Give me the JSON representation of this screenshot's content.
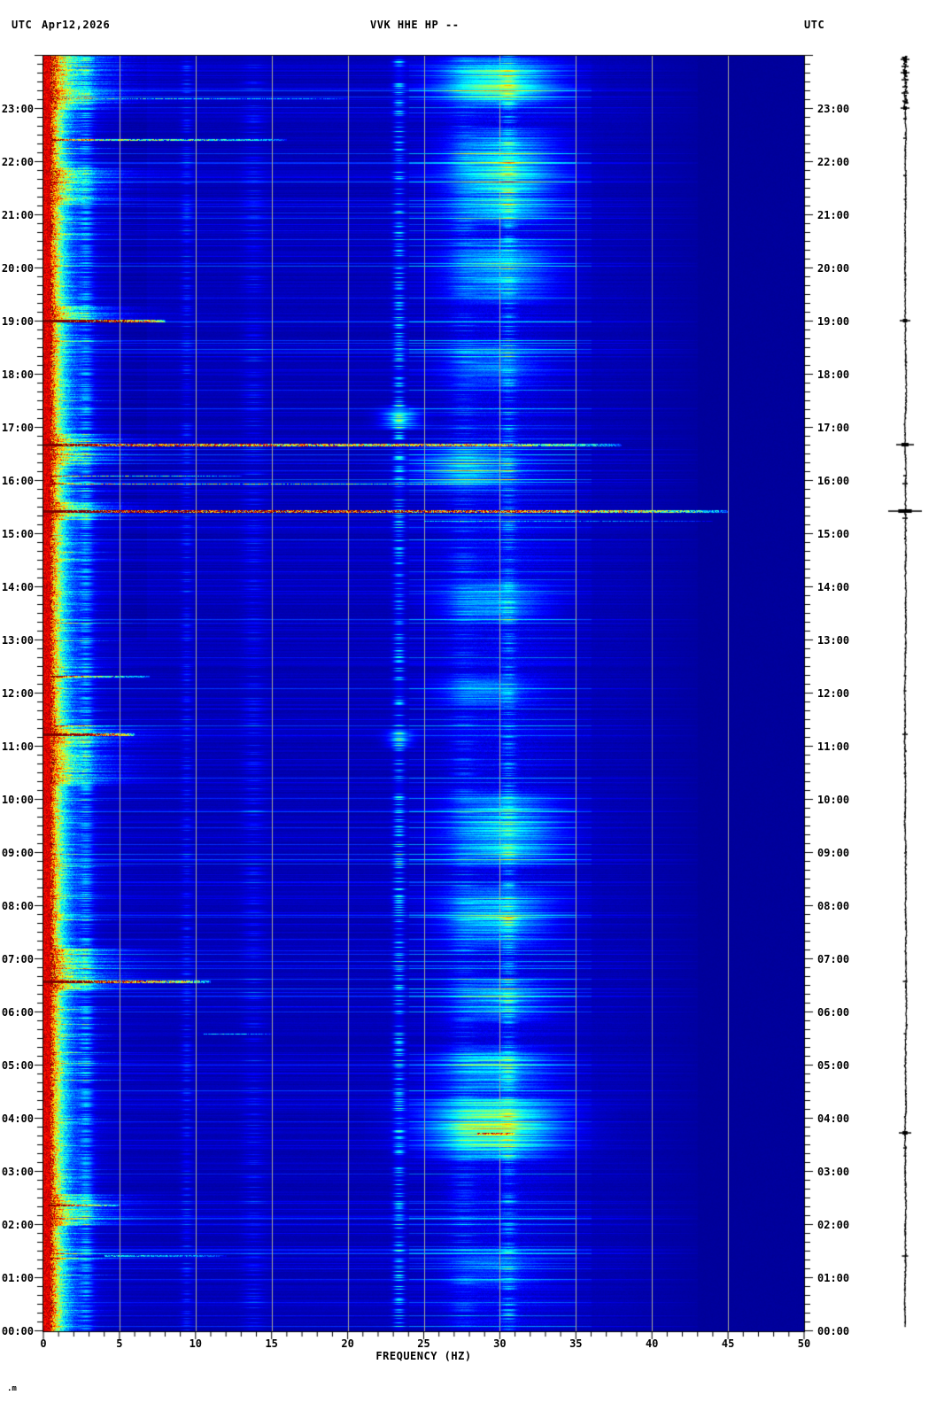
{
  "header": {
    "utc_left": "UTC",
    "date": "Apr12,2026",
    "station": "VVK HHE HP --",
    "utc_right": "UTC"
  },
  "footer_artifact": ".m",
  "axes": {
    "x": {
      "label": "FREQUENCY (HZ)",
      "min": 0,
      "max": 50,
      "major_tick_step": 5,
      "minor_tick_step": 1,
      "tick_labels": [
        "0",
        "5",
        "10",
        "15",
        "20",
        "25",
        "30",
        "35",
        "40",
        "45",
        "50"
      ]
    },
    "y": {
      "unit": "UTC",
      "bottom": "00:00",
      "top": "24:00",
      "minor_tick_minutes": 10,
      "hour_labels": [
        "00:00",
        "01:00",
        "02:00",
        "03:00",
        "04:00",
        "05:00",
        "06:00",
        "07:00",
        "08:00",
        "09:00",
        "10:00",
        "11:00",
        "12:00",
        "13:00",
        "14:00",
        "15:00",
        "16:00",
        "17:00",
        "18:00",
        "19:00",
        "20:00",
        "21:00",
        "22:00",
        "23:00"
      ]
    }
  },
  "colors": {
    "page_background": "#ffffff",
    "plot_navy": "#0000a0",
    "gridline": "#a8a89a",
    "text": "#000000",
    "trace": "#000000",
    "left_column_core": "#d00000"
  },
  "chart_data": {
    "type": "heatmap",
    "subtype": "seismic-spectrogram",
    "title": "VVK HHE HP --",
    "date": "Apr12,2026",
    "xlabel": "FREQUENCY (HZ)",
    "xlim": [
      0,
      50
    ],
    "time_axis": {
      "bottom": "00:00",
      "top": "24:00",
      "direction": "up",
      "zone": "UTC"
    },
    "grid": {
      "vertical_every_hz": 5,
      "on": true
    },
    "colormap": "jet",
    "background_level": 0.028,
    "left_column": {
      "red_fmax": 0.42,
      "decay_width": 0.8,
      "burst_regions": [
        [
          23.0,
          24.0
        ],
        [
          21.2,
          21.9
        ],
        [
          19.0,
          19.3
        ],
        [
          16.3,
          16.9
        ],
        [
          15.3,
          15.6
        ],
        [
          10.3,
          11.4
        ],
        [
          6.4,
          7.2
        ],
        [
          2.0,
          2.6
        ]
      ]
    },
    "broad_band": {
      "fc": 29.9,
      "sig": 2.7,
      "amp": 0.045
    },
    "flat_band": {
      "fmin": 43,
      "level": 0.023
    },
    "fade_band": {
      "fmin": 38,
      "fmax": 43
    },
    "dark_bands": [
      {
        "fmin": 5.2,
        "fmax": 6.8,
        "t0": 13,
        "t1": 24,
        "delta": 0.012
      }
    ],
    "stripes": [
      {
        "f": 2.8,
        "sig": 0.3,
        "amp": 0.06,
        "p": 0.5
      },
      {
        "f": 9.4,
        "sig": 0.25,
        "amp": 0.035,
        "p": 0.3
      },
      {
        "f": 13.8,
        "sig": 0.5,
        "amp": 0.03,
        "p": 0.25
      },
      {
        "f": 23.35,
        "sig": 0.25,
        "amp": 0.1,
        "p": 0.3
      },
      {
        "f": 27.6,
        "sig": 0.6,
        "amp": 0.035,
        "p": 0.3
      },
      {
        "f": 30.55,
        "sig": 0.35,
        "amp": 0.06,
        "p": 0.35
      }
    ],
    "clouds": [
      {
        "t0": 23.0,
        "t1": 24.0,
        "fc": 29.8,
        "sig": 2.4,
        "amp": 0.3
      },
      {
        "t0": 20.8,
        "t1": 22.7,
        "fc": 30.2,
        "sig": 2.2,
        "amp": 0.26
      },
      {
        "t0": 19.3,
        "t1": 20.6,
        "fc": 30.0,
        "sig": 2.2,
        "amp": 0.2
      },
      {
        "t0": 17.7,
        "t1": 18.7,
        "fc": 29.5,
        "sig": 2.0,
        "amp": 0.12
      },
      {
        "t0": 16.95,
        "t1": 17.45,
        "fc": 23.4,
        "sig": 0.8,
        "amp": 0.26
      },
      {
        "t0": 15.8,
        "t1": 16.7,
        "fc": 27.8,
        "sig": 2.2,
        "amp": 0.22
      },
      {
        "t0": 13.3,
        "t1": 14.2,
        "fc": 29.5,
        "sig": 2.2,
        "amp": 0.16
      },
      {
        "t0": 11.7,
        "t1": 12.4,
        "fc": 29.0,
        "sig": 2.0,
        "amp": 0.12
      },
      {
        "t0": 10.95,
        "t1": 11.35,
        "fc": 23.4,
        "sig": 0.6,
        "amp": 0.16
      },
      {
        "t0": 8.7,
        "t1": 10.2,
        "fc": 30.3,
        "sig": 2.3,
        "amp": 0.22
      },
      {
        "t0": 7.2,
        "t1": 8.4,
        "fc": 29.8,
        "sig": 2.3,
        "amp": 0.22
      },
      {
        "t0": 5.8,
        "t1": 6.7,
        "fc": 30.0,
        "sig": 2.0,
        "amp": 0.16
      },
      {
        "t0": 4.5,
        "t1": 5.4,
        "fc": 29.5,
        "sig": 2.3,
        "amp": 0.22
      },
      {
        "t0": 3.2,
        "t1": 4.5,
        "fc": 29.5,
        "sig": 2.8,
        "amp": 0.38
      },
      {
        "t0": 0.8,
        "t1": 1.6,
        "fc": 29.5,
        "sig": 2.0,
        "amp": 0.1
      }
    ],
    "events": [
      {
        "t": 23.2,
        "fmin": 0.5,
        "fmax": 20,
        "amp": 0.4
      },
      {
        "t": 22.42,
        "fmin": 0.5,
        "fmax": 16,
        "amp": 0.5
      },
      {
        "t": 19.02,
        "fmin": 0.2,
        "fmax": 8,
        "amp": 0.95,
        "blob": true
      },
      {
        "t": 16.69,
        "fmin": 0.4,
        "fmax": 38,
        "amp": 0.8,
        "blob": true
      },
      {
        "t": 16.1,
        "fmin": 0.5,
        "fmax": 13,
        "amp": 0.5
      },
      {
        "t": 15.95,
        "fmin": 0.5,
        "fmax": 27,
        "amp": 0.55
      },
      {
        "t": 15.44,
        "fmin": 0.3,
        "fmax": 45,
        "amp": 1.0,
        "blob": true
      },
      {
        "t": 15.25,
        "fmin": 25,
        "fmax": 44,
        "amp": 0.28
      },
      {
        "t": 12.33,
        "fmin": 0.5,
        "fmax": 7,
        "amp": 0.45
      },
      {
        "t": 11.23,
        "fmin": 0.2,
        "fmax": 6,
        "amp": 0.9,
        "blob": true
      },
      {
        "t": 6.58,
        "fmin": 0.2,
        "fmax": 11,
        "amp": 0.85,
        "blob": true
      },
      {
        "t": 5.6,
        "fmin": 10.5,
        "fmax": 15,
        "amp": 0.35
      },
      {
        "t": 3.73,
        "fmin": 28.5,
        "fmax": 31,
        "amp": 0.55
      },
      {
        "t": 2.37,
        "fmin": 0.3,
        "fmax": 5,
        "amp": 0.5
      },
      {
        "t": 1.42,
        "fmin": 4,
        "fmax": 12,
        "amp": 0.3
      }
    ],
    "trace": {
      "x": 1022,
      "noisy_top_from": 23.0,
      "spikes": [
        [
          23.93,
          5
        ],
        [
          23.8,
          4
        ],
        [
          23.68,
          5
        ],
        [
          23.55,
          4
        ],
        [
          23.42,
          3
        ],
        [
          23.3,
          4
        ],
        [
          23.15,
          3
        ],
        [
          23.02,
          5
        ],
        [
          22.82,
          2
        ],
        [
          22.45,
          2
        ],
        [
          21.75,
          2
        ],
        [
          21.3,
          1.5
        ],
        [
          19.02,
          6
        ],
        [
          16.69,
          10
        ],
        [
          16.1,
          2
        ],
        [
          15.95,
          3
        ],
        [
          15.44,
          19
        ],
        [
          15.3,
          3
        ],
        [
          12.33,
          1.5
        ],
        [
          12.05,
          1.5
        ],
        [
          11.23,
          3
        ],
        [
          10.5,
          1.5
        ],
        [
          9.0,
          1
        ],
        [
          6.58,
          2.5
        ],
        [
          5.6,
          1.5
        ],
        [
          3.73,
          7
        ],
        [
          3.45,
          2
        ],
        [
          3.3,
          1.5
        ],
        [
          1.42,
          3.5
        ],
        [
          0.9,
          1
        ]
      ]
    }
  }
}
